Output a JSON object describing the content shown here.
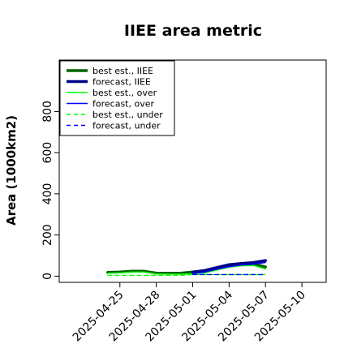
{
  "chart_data": {
    "type": "line",
    "title": "IIEE area metric",
    "xlabel": "",
    "ylabel": "Area (1000km2)",
    "ylim": [
      -30,
      1050
    ],
    "yticks": [
      0,
      200,
      400,
      600,
      800
    ],
    "xlim": [
      "2025-04-20",
      "2025-05-12"
    ],
    "xticks": [
      "2025-04-25",
      "2025-04-28",
      "2025-05-01",
      "2025-05-04",
      "2025-05-07",
      "2025-05-10"
    ],
    "highlight_tick": "2025-05-01",
    "highlight_color": "#228b22",
    "grid": false,
    "legend_position": "top-left",
    "series": [
      {
        "name": "best est., IIEE",
        "color": "#006400",
        "width": 3.5,
        "dash": "",
        "x": [
          "2025-04-24",
          "2025-04-25",
          "2025-04-26",
          "2025-04-27",
          "2025-04-28",
          "2025-04-29",
          "2025-04-30",
          "2025-05-01",
          "2025-05-02",
          "2025-05-03",
          "2025-05-04",
          "2025-05-05",
          "2025-05-06",
          "2025-05-07"
        ],
        "y": [
          18,
          20,
          24,
          24,
          15,
          14,
          14,
          20,
          24,
          38,
          55,
          58,
          60,
          45
        ]
      },
      {
        "name": "forecast, IIEE",
        "color": "#00008b",
        "width": 3.5,
        "dash": "",
        "x": [
          "2025-05-01",
          "2025-05-02",
          "2025-05-03",
          "2025-05-04",
          "2025-05-05",
          "2025-05-06",
          "2025-05-07"
        ],
        "y": [
          20,
          28,
          42,
          56,
          62,
          66,
          76
        ]
      },
      {
        "name": "best est., over",
        "color": "#00ff00",
        "width": 1.4,
        "dash": "",
        "x": [
          "2025-04-24",
          "2025-04-25",
          "2025-04-26",
          "2025-04-27",
          "2025-04-28",
          "2025-04-29",
          "2025-04-30",
          "2025-05-01",
          "2025-05-02",
          "2025-05-03",
          "2025-05-04",
          "2025-05-05",
          "2025-05-06",
          "2025-05-07"
        ],
        "y": [
          14,
          16,
          20,
          20,
          11,
          10,
          10,
          12,
          16,
          30,
          44,
          50,
          52,
          35
        ]
      },
      {
        "name": "forecast, over",
        "color": "#0000ff",
        "width": 1.4,
        "dash": "",
        "x": [
          "2025-05-01",
          "2025-05-02",
          "2025-05-03",
          "2025-05-04",
          "2025-05-05",
          "2025-05-06",
          "2025-05-07"
        ],
        "y": [
          12,
          20,
          34,
          46,
          54,
          58,
          66
        ]
      },
      {
        "name": "best est., under",
        "color": "#00ff00",
        "width": 1.4,
        "dash": "5,4",
        "x": [
          "2025-04-24",
          "2025-04-25",
          "2025-04-26",
          "2025-04-27",
          "2025-04-28",
          "2025-04-29",
          "2025-04-30",
          "2025-05-01",
          "2025-05-02",
          "2025-05-03",
          "2025-05-04",
          "2025-05-05",
          "2025-05-06",
          "2025-05-07"
        ],
        "y": [
          4,
          4,
          4,
          4,
          4,
          4,
          4,
          8,
          8,
          8,
          8,
          8,
          8,
          8
        ]
      },
      {
        "name": "forecast, under",
        "color": "#0000ff",
        "width": 1.4,
        "dash": "5,4",
        "x": [
          "2025-05-01",
          "2025-05-02",
          "2025-05-03",
          "2025-05-04",
          "2025-05-05",
          "2025-05-06",
          "2025-05-07"
        ],
        "y": [
          8,
          8,
          8,
          8,
          8,
          8,
          8
        ]
      }
    ]
  }
}
